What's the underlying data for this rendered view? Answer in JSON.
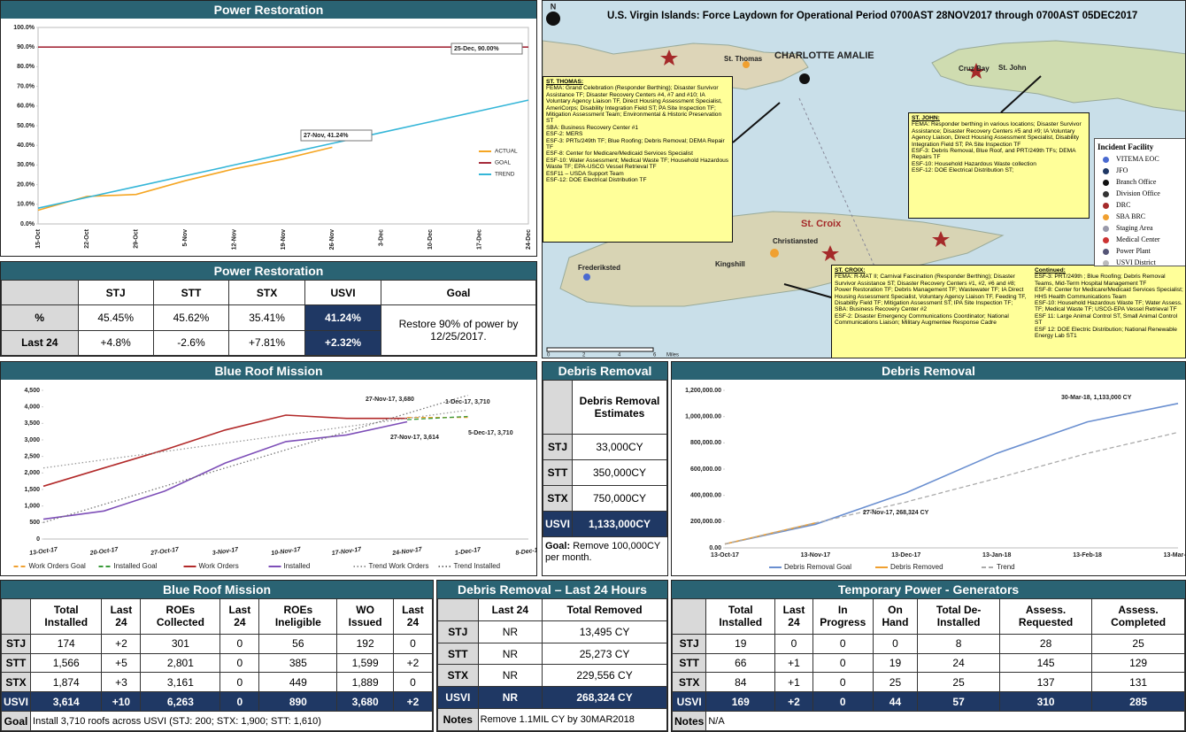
{
  "chart_data": [
    {
      "type": "line",
      "title": "Power Restoration",
      "categories": [
        "15-Oct",
        "22-Oct",
        "29-Oct",
        "5-Nov",
        "12-Nov",
        "19-Nov",
        "26-Nov",
        "3-Dec",
        "10-Dec",
        "17-Dec",
        "24-Dec"
      ],
      "series": [
        {
          "name": "ACTUAL",
          "color": "#f5a623",
          "style": "solid",
          "values": [
            7,
            14,
            15,
            22,
            28,
            33,
            39,
            null,
            null,
            null,
            null
          ]
        },
        {
          "name": "GOAL",
          "color": "#a52a3a",
          "style": "solid",
          "values": [
            90,
            90,
            90,
            90,
            90,
            90,
            90,
            90,
            90,
            90,
            90
          ]
        },
        {
          "name": "TREND",
          "color": "#35b6d8",
          "style": "solid",
          "values": [
            8,
            13.5,
            19,
            24.5,
            30,
            35.5,
            41,
            46.5,
            52,
            57.5,
            63
          ]
        }
      ],
      "ylim": [
        0,
        100
      ],
      "yticks": [
        {
          "value": 0,
          "label": "0.0%"
        },
        {
          "value": 10,
          "label": "10.0%"
        },
        {
          "value": 20,
          "label": "20.0%"
        },
        {
          "value": 30,
          "label": "30.0%"
        },
        {
          "value": 40,
          "label": "40.0%"
        },
        {
          "value": 50,
          "label": "50.0%"
        },
        {
          "value": 60,
          "label": "60.0%"
        },
        {
          "value": 70,
          "label": "70.0%"
        },
        {
          "value": 80,
          "label": "80.0%"
        },
        {
          "value": 90,
          "label": "90.0%"
        },
        {
          "value": 100,
          "label": "100.0%"
        }
      ],
      "grid": false,
      "legend": "right",
      "annotations": [
        "25-Dec, 90.00%",
        "27-Nov, 41.24%"
      ]
    },
    {
      "type": "line",
      "title": "Blue Roof Mission",
      "categories": [
        "13-Oct-17",
        "20-Oct-17",
        "27-Oct-17",
        "3-Nov-17",
        "10-Nov-17",
        "17-Nov-17",
        "24-Nov-17",
        "1-Dec-17",
        "8-Dec-17"
      ],
      "series": [
        {
          "name": "Work Orders Goal",
          "color": "#f0a030",
          "style": "dashed",
          "values": [
            null,
            null,
            null,
            null,
            null,
            null,
            3680,
            3680,
            null
          ]
        },
        {
          "name": "Installed  Goal",
          "color": "#3a9a3a",
          "style": "dashed",
          "values": [
            null,
            null,
            null,
            null,
            null,
            null,
            3614,
            3710,
            null
          ]
        },
        {
          "name": "Work Orders",
          "color": "#b22a2a",
          "style": "solid",
          "values": [
            1600,
            2150,
            2700,
            3300,
            3750,
            3650,
            3650,
            null,
            null
          ]
        },
        {
          "name": "Installed",
          "color": "#7e4fb8",
          "style": "solid",
          "values": [
            600,
            850,
            1450,
            2300,
            2950,
            3150,
            3550,
            null,
            null
          ]
        },
        {
          "name": "Trend Work Orders",
          "color": "#999999",
          "style": "dotted",
          "values": [
            2150,
            2400,
            2650,
            2900,
            3150,
            3400,
            3650,
            3900,
            null
          ]
        },
        {
          "name": "Trend Installed",
          "color": "#777777",
          "style": "dotted",
          "values": [
            500,
            1050,
            1600,
            2150,
            2700,
            3250,
            3800,
            4350,
            null
          ]
        }
      ],
      "ylim": [
        0,
        4500
      ],
      "yticks": [
        0,
        500,
        {
          "value": 1000,
          "label": "1,000"
        },
        {
          "value": 1500,
          "label": "1,500"
        },
        {
          "value": 2000,
          "label": "2,000"
        },
        {
          "value": 2500,
          "label": "2,500"
        },
        {
          "value": 3000,
          "label": "3,000"
        },
        {
          "value": 3500,
          "label": "3,500"
        },
        {
          "value": 4000,
          "label": "4,000"
        },
        {
          "value": 4500,
          "label": "4,500"
        }
      ],
      "grid": false,
      "legend": "bottom",
      "annotations": [
        "27-Nov-17, 3,680",
        "1-Dec-17, 3,710",
        "27-Nov-17, 3,614",
        "5-Dec-17, 3,710"
      ]
    },
    {
      "type": "line",
      "title": "Debris Removal",
      "categories": [
        "13-Oct-17",
        "13-Nov-17",
        "13-Dec-17",
        "13-Jan-18",
        "13-Feb-18",
        "13-Mar-18"
      ],
      "series": [
        {
          "name": "Debris Removal Goal",
          "color": "#6a8fd0",
          "style": "solid",
          "values": [
            30000,
            180000,
            420000,
            720000,
            960000,
            1100000
          ]
        },
        {
          "name": "Debris Removed",
          "color": "#f0a030",
          "style": "solid",
          "values": [
            30000,
            190000,
            null,
            null,
            null,
            null
          ]
        },
        {
          "name": "Trend",
          "color": "#aaaaaa",
          "style": "dashed",
          "values": [
            30000,
            190000,
            350000,
            530000,
            720000,
            880000
          ]
        }
      ],
      "ylim": [
        0,
        1200000
      ],
      "yticks": [
        {
          "value": 0,
          "label": "0.00"
        },
        {
          "value": 200000,
          "label": "200,000.00"
        },
        {
          "value": 400000,
          "label": "400,000.00"
        },
        {
          "value": 600000,
          "label": "600,000.00"
        },
        {
          "value": 800000,
          "label": "800,000.00"
        },
        {
          "value": 1000000,
          "label": "1,000,000.00"
        },
        {
          "value": 1200000,
          "label": "1,200,000.00"
        }
      ],
      "grid": false,
      "legend": "bottom",
      "annotations": [
        "30-Mar-18, 1,133,000 CY",
        "27-Nov-17, 268,324 CY"
      ]
    }
  ],
  "tables": {
    "power": {
      "title": "Power Restoration",
      "header": [
        "STJ",
        "STT",
        "STX",
        "USVI",
        "Goal"
      ],
      "rows": [
        [
          "%",
          "45.45%",
          "45.62%",
          "35.41%",
          "41.24%"
        ],
        [
          "Last 24",
          "+4.8%",
          "-2.6%",
          "+7.81%",
          "+2.32%"
        ]
      ],
      "goal": "Restore 90% of power by 12/25/2017."
    },
    "debris_estimates": {
      "title": "Debris Removal",
      "header": [
        "Debris Removal Estimates"
      ],
      "rows": [
        [
          "STJ",
          "33,000CY"
        ],
        [
          "STT",
          "350,000CY"
        ],
        [
          "STX",
          "750,000CY"
        ],
        [
          "USVI",
          "1,133,000CY"
        ]
      ],
      "note_label": "Goal:",
      "note": "Remove 100,000CY per month."
    },
    "blue_roof": {
      "title": "Blue Roof Mission",
      "header": [
        "Total Installed",
        "Last 24",
        "ROEs Collected",
        "Last 24",
        "ROEs Ineligible",
        "WO Issued",
        "Last 24"
      ],
      "rows": [
        [
          "STJ",
          "174",
          "+2",
          "301",
          "0",
          "56",
          "192",
          "0"
        ],
        [
          "STT",
          "1,566",
          "+5",
          "2,801",
          "0",
          "385",
          "1,599",
          "+2"
        ],
        [
          "STX",
          "1,874",
          "+3",
          "3,161",
          "0",
          "449",
          "1,889",
          "0"
        ],
        [
          "USVI",
          "3,614",
          "+10",
          "6,263",
          "0",
          "890",
          "3,680",
          "+2"
        ]
      ],
      "note_label": "Goal",
      "note": "Install 3,710 roofs across USVI (STJ: 200; STX: 1,900; STT: 1,610)"
    },
    "debris_24": {
      "title": "Debris Removal – Last 24 Hours",
      "header": [
        "Last 24",
        "Total Removed"
      ],
      "rows": [
        [
          "STJ",
          "NR",
          "13,495 CY"
        ],
        [
          "STT",
          "NR",
          "25,273 CY"
        ],
        [
          "STX",
          "NR",
          "229,556 CY"
        ],
        [
          "USVI",
          "NR",
          "268,324 CY"
        ]
      ],
      "note_label": "Notes",
      "note": "Remove 1.1MIL CY by 30MAR2018"
    },
    "temp_power": {
      "title": "Temporary Power - Generators",
      "header": [
        "Total Installed",
        "Last 24",
        "In Progress",
        "On Hand",
        "Total De-Installed",
        "Assess. Requested",
        "Assess. Completed"
      ],
      "rows": [
        [
          "STJ",
          "19",
          "0",
          "0",
          "0",
          "8",
          "28",
          "25"
        ],
        [
          "STT",
          "66",
          "+1",
          "0",
          "19",
          "24",
          "145",
          "129"
        ],
        [
          "STX",
          "84",
          "+1",
          "0",
          "25",
          "25",
          "137",
          "131"
        ],
        [
          "USVI",
          "169",
          "+2",
          "0",
          "44",
          "57",
          "310",
          "285"
        ]
      ],
      "note_label": "Notes",
      "note": "N/A"
    }
  },
  "map": {
    "compass": "N",
    "title": "U.S. Virgin Islands: Force Laydown for Operational Period 0700AST 28NOV2017 through 0700AST 05DEC2017",
    "places": [
      "CHARLOTTE AMALIE",
      "St. Thomas",
      "Cruz Bay",
      "St. John",
      "St. Croix",
      "Christiansted",
      "Frederiksted",
      "Kingshill"
    ],
    "boxes": [
      {
        "title": "ST. THOMAS:",
        "lines": [
          "FEMA: Grand Celebration (Responder Berthing); Disaster Survivor Assistance TF; Disaster Recovery Centers #4, #7 and #10; IA Voluntary Agency Liaison TF, Direct Housing Assessment Specialist, AmeriCorps; Disability Integration Field ST; PA Site Inspection TF; Mitigation Assessment Team; Environmental & Historic Preservation ST",
          "SBA: Business Recovery Center #1",
          "ESF-2: MERS",
          "ESF-3: PRTs/249th TF; Blue Roofing; Debris Removal; DEMA Repair TF",
          "ESF-8: Center for Medicare/Medicaid Services Specialist",
          "ESF-10: Water Assessment; Medical Waste TF; Household Hazardous Waste TF; EPA-USCG Vessel Retrieval TF",
          "ESF11 – USDA Support Team",
          "ESF-12: DOE Electrical Distribution TF"
        ]
      },
      {
        "title": "ST. JOHN:",
        "lines": [
          "FEMA: Responder berthing in various locations; Disaster Survivor Assistance; Disaster Recovery Centers #5 and #9; IA Voluntary Agency Liaison, Direct Housing Assessment Specialist, Disability Integration Field ST; PA Site Inspection TF",
          "ESF-3: Debris Removal, Blue Roof, and PRT/249th TFs; DEMA Repairs TF",
          "ESF-10: Household Hazardous Waste collection",
          "ESF-12: DOE Electrical Distribution ST;"
        ]
      },
      {
        "title": "ST. CROIX:",
        "lines": [
          "FEMA: R-MAT II; Carnival Fascination (Responder Berthing); Disaster Survivor Assistance ST; Disaster Recovery Centers #1, #2, #6 and #8; Power Restoration TF; Debris Management TF; Wastewater TF; IA Direct Housing Assessment Specialist, Voluntary Agency Liaison TF, Feeding TF, Disability Field TF; Mitigation Assessment ST; IPA Site Inspection TF;",
          "SBA: Business Recovery Center #2",
          "ESF-2: Disaster Emergency Communications Coordinator; National Communications Liaison; Military Augmentee Response Cadre"
        ]
      },
      {
        "title": "Continued:",
        "lines": [
          "ESF-3: PRT/249th ; Blue Roofing; Debris Removal Teams, Mid-Term Hospital Management TF",
          "ESF-8: Center for Medicare/Medicaid Services Specialist; HHS Health Communications Team",
          "ESF-10: Household Hazardous Waste TF; Water Assess. TF; Medical Waste TF; USCG-EPA Vessel Retrieval TF",
          "ESF 11: Large Animal Control ST, Small Animal Control ST",
          "ESF 12: DOE Electric Distribution; National Renewable Energy Lab ST1"
        ]
      }
    ],
    "legend": {
      "title": "Incident Facility",
      "items": [
        "VITEMA EOC",
        "JFO",
        "Branch Office",
        "Division Office",
        "DRC",
        "SBA BRC",
        "Staging Area",
        "Medical Center",
        "Power Plant",
        "USVI District"
      ]
    },
    "scale": [
      "0",
      "2",
      "4",
      "6",
      "Miles"
    ]
  }
}
